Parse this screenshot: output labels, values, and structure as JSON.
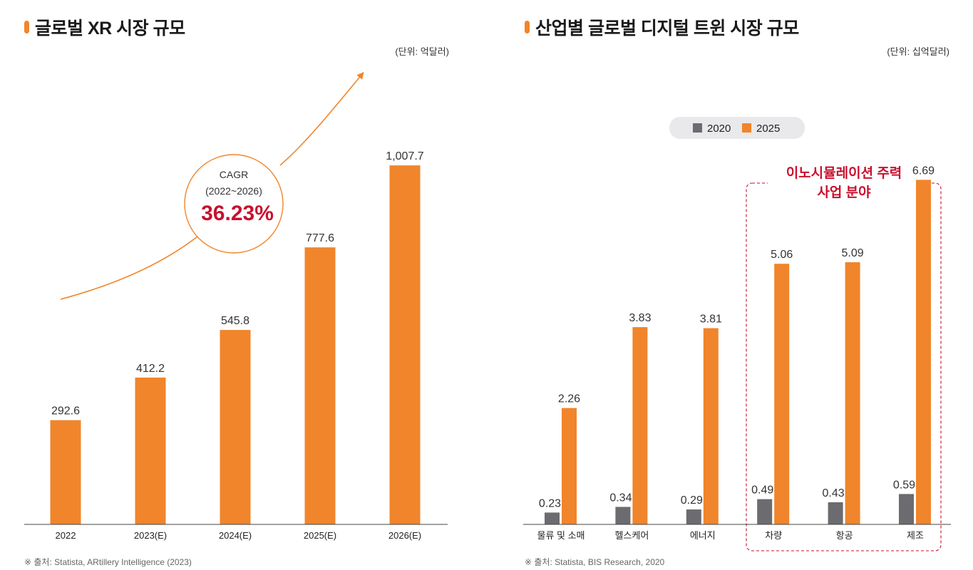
{
  "charts": [
    {
      "title": "글로벌 XR 시장 규모",
      "unit": "(단위: 억달러)",
      "source": "※ 출처: Statista, ARtillery Intelligence (2023)",
      "annotation": {
        "label1": "CAGR",
        "label2": "(2022~2026)",
        "value": "36.23%"
      }
    },
    {
      "title": "산업별 글로벌 디지털 트윈 시장 규모",
      "unit": "(단위: 십억달러)",
      "source": "※ 출처: Statista, BIS Research, 2020",
      "highlight": {
        "line1": "이노시뮬레이션 주력",
        "line2": "사업 분야"
      }
    }
  ],
  "colors": {
    "accent": "#f0852b",
    "series2020": "#6b6b70",
    "highlight_red": "#c8102e",
    "legend_bg": "#e9e9eb"
  },
  "chart_data": [
    {
      "type": "bar",
      "title": "글로벌 XR 시장 규모",
      "categories": [
        "2022",
        "2023(E)",
        "2024(E)",
        "2025(E)",
        "2026(E)"
      ],
      "values": [
        292.6,
        412.2,
        545.8,
        777.6,
        1007.7
      ],
      "value_labels": [
        "292.6",
        "412.2",
        "545.8",
        "777.6",
        "1,007.7"
      ],
      "ylim": [
        0,
        1200
      ],
      "grid": false
    },
    {
      "type": "bar",
      "title": "산업별 글로벌 디지털 트윈 시장 규모",
      "categories": [
        "물류 및 소매",
        "헬스케어",
        "에너지",
        "차량",
        "항공",
        "제조"
      ],
      "series": [
        {
          "name": "2020",
          "values": [
            0.23,
            0.34,
            0.29,
            0.49,
            0.43,
            0.59
          ]
        },
        {
          "name": "2025",
          "values": [
            2.26,
            3.83,
            3.81,
            5.06,
            5.09,
            6.69
          ]
        }
      ],
      "ylim": [
        0,
        8.3
      ],
      "legend_position": "top-center",
      "grid": false
    }
  ]
}
